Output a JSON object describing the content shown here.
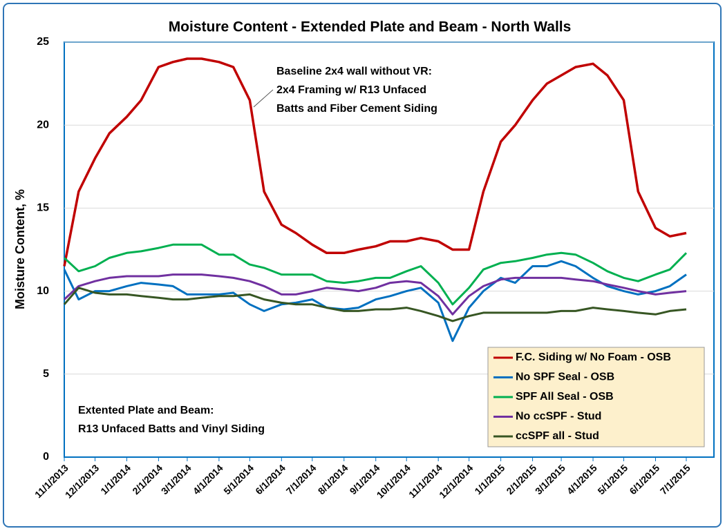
{
  "chart_data": {
    "type": "line",
    "title": "Moisture Content - Extended Plate and Beam - North Walls",
    "y_label": "Moisture  Content, %",
    "x": [
      "11/1/2013",
      "11/15/2013",
      "12/1/2013",
      "12/15/2013",
      "1/1/2014",
      "1/15/2014",
      "2/1/2014",
      "2/15/2014",
      "3/1/2014",
      "3/15/2014",
      "4/1/2014",
      "4/15/2014",
      "5/1/2014",
      "5/15/2014",
      "6/1/2014",
      "6/15/2014",
      "7/1/2014",
      "7/15/2014",
      "8/1/2014",
      "8/15/2014",
      "9/1/2014",
      "9/15/2014",
      "10/1/2014",
      "10/15/2014",
      "11/1/2014",
      "11/15/2014",
      "12/1/2014",
      "12/15/2014",
      "1/1/2015",
      "1/15/2015",
      "2/1/2015",
      "2/15/2015",
      "3/1/2015",
      "3/15/2015",
      "4/1/2015",
      "4/15/2015",
      "5/1/2015",
      "5/15/2015",
      "6/1/2015",
      "6/15/2015",
      "7/1/2015"
    ],
    "series": [
      {
        "name": "F.C. Siding w/ No Foam - OSB",
        "color": "#c00000",
        "values": [
          11.5,
          16,
          18,
          19.5,
          20.5,
          21.5,
          23.5,
          23.8,
          24,
          24,
          23.8,
          23.5,
          21.5,
          16,
          14,
          13.5,
          12.8,
          12.3,
          12.3,
          12.5,
          12.7,
          13,
          13,
          13.2,
          13,
          12.5,
          12.5,
          16,
          19,
          20,
          21.5,
          22.5,
          23,
          23.5,
          23.7,
          23,
          21.5,
          16,
          13.8,
          13.3,
          13.5
        ]
      },
      {
        "name": "No SPF Seal - OSB",
        "color": "#0070c0",
        "values": [
          11.3,
          9.5,
          10,
          10,
          10.3,
          10.5,
          10.4,
          10.3,
          9.8,
          9.8,
          9.8,
          9.9,
          9.2,
          8.8,
          9.2,
          9.3,
          9.5,
          9,
          8.9,
          9,
          9.5,
          9.7,
          10,
          10.2,
          9.3,
          7,
          9,
          10,
          10.8,
          10.5,
          11.5,
          11.5,
          11.8,
          11.5,
          10.8,
          10.3,
          10,
          9.8,
          10,
          10.3,
          11
        ]
      },
      {
        "name": "SPF All Seal - OSB",
        "color": "#00b050",
        "values": [
          12,
          11.2,
          11.5,
          12,
          12.3,
          12.4,
          12.6,
          12.8,
          12.8,
          12.8,
          12.2,
          12.2,
          11.6,
          11.4,
          11,
          11,
          11,
          10.6,
          10.5,
          10.6,
          10.8,
          10.8,
          11.2,
          11.5,
          10.5,
          9.2,
          10.2,
          11.3,
          11.7,
          11.8,
          12,
          12.2,
          12.3,
          12.2,
          11.7,
          11.2,
          10.8,
          10.6,
          11,
          11.3,
          12.3
        ]
      },
      {
        "name": "No ccSPF - Stud",
        "color": "#7030a0",
        "values": [
          9.5,
          10.3,
          10.6,
          10.8,
          10.9,
          10.9,
          10.9,
          11,
          11,
          11,
          10.9,
          10.8,
          10.6,
          10.3,
          9.8,
          9.8,
          10,
          10.2,
          10.1,
          10,
          10.2,
          10.5,
          10.6,
          10.5,
          9.7,
          8.6,
          9.7,
          10.3,
          10.7,
          10.8,
          10.8,
          10.8,
          10.8,
          10.7,
          10.6,
          10.4,
          10.2,
          10,
          9.8,
          9.9,
          10
        ]
      },
      {
        "name": "ccSPF all - Stud",
        "color": "#375623",
        "values": [
          9.2,
          10.2,
          9.9,
          9.8,
          9.8,
          9.7,
          9.6,
          9.5,
          9.5,
          9.6,
          9.7,
          9.7,
          9.8,
          9.5,
          9.3,
          9.2,
          9.2,
          9,
          8.8,
          8.8,
          8.9,
          8.9,
          9,
          8.8,
          8.5,
          8.2,
          8.5,
          8.7,
          8.7,
          8.7,
          8.7,
          8.7,
          8.8,
          8.8,
          9,
          8.9,
          8.8,
          8.7,
          8.6,
          8.8,
          8.9
        ]
      }
    ],
    "xlim": [
      "11/1/2013",
      "7/28/2015"
    ],
    "xticks": [
      "11/1/2013",
      "12/1/2013",
      "1/1/2014",
      "2/1/2014",
      "3/1/2014",
      "4/1/2014",
      "5/1/2014",
      "6/1/2014",
      "7/1/2014",
      "8/1/2014",
      "9/1/2014",
      "10/1/2014",
      "11/1/2014",
      "12/1/2014",
      "1/1/2015",
      "2/1/2015",
      "3/1/2015",
      "4/1/2015",
      "5/1/2015",
      "6/1/2015",
      "7/1/2015"
    ],
    "ylim": [
      0,
      25
    ],
    "yticks": [
      0,
      5,
      10,
      15,
      20,
      25
    ],
    "grid": true,
    "legend": "lower right",
    "annotations": [
      "Baseline 2x4 wall without VR:",
      "2x4 Framing w/ R13 Unfaced",
      "Batts and Fiber Cement Siding",
      "Extented Plate and Beam:",
      "R13 Unfaced Batts and Vinyl Siding"
    ]
  }
}
